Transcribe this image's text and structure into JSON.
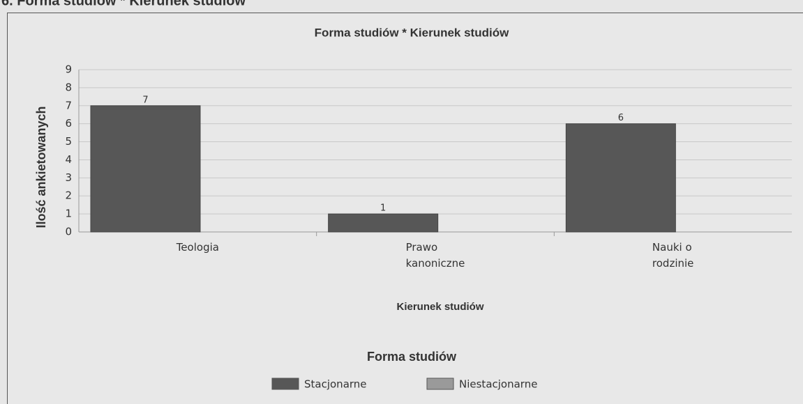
{
  "page_heading": "6. Forma studiów * Kierunek studiów",
  "chart_data": {
    "type": "bar",
    "title": "Forma studiów * Kierunek studiów",
    "xlabel": "Kierunek studiów",
    "ylabel": "Ilość ankietowanych",
    "categories": [
      "Teologia",
      "Prawo kanoniczne",
      "Nauki o rodzinie"
    ],
    "legend_title": "Forma studiów",
    "series": [
      {
        "name": "Stacjonarne",
        "color": "#575757",
        "values": [
          7,
          1,
          6
        ]
      },
      {
        "name": "Niestacjonarne",
        "color": "#9a9a9a",
        "values": [
          0,
          0,
          0
        ]
      }
    ],
    "ylim": [
      0,
      9
    ],
    "yticks": [
      0,
      1,
      2,
      3,
      4,
      5,
      6,
      7,
      8,
      9
    ],
    "grid": true
  }
}
